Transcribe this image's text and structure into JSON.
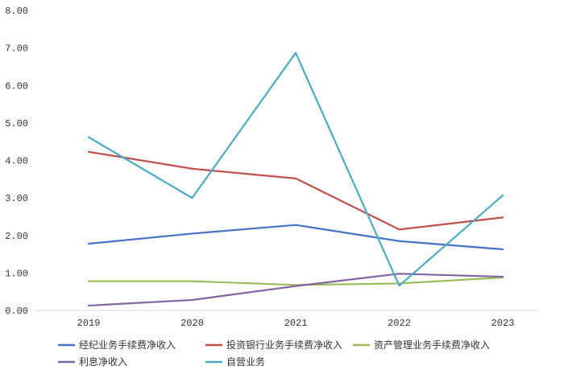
{
  "chart_data": {
    "type": "line",
    "title": "",
    "xlabel": "",
    "ylabel": "",
    "categories": [
      "2019",
      "2020",
      "2021",
      "2022",
      "2023"
    ],
    "ylim": [
      0,
      8
    ],
    "yticks": [
      "0.00",
      "1.00",
      "2.00",
      "3.00",
      "4.00",
      "5.00",
      "6.00",
      "7.00",
      "8.00"
    ],
    "grid": false,
    "legend_position": "bottom",
    "series": [
      {
        "name": "经纪业务手续费净收入",
        "color": "#4472c4",
        "values": [
          1.78,
          2.05,
          2.28,
          1.85,
          1.63
        ]
      },
      {
        "name": "投资银行业务手续费净收入",
        "color": "#c0504d",
        "values": [
          4.23,
          3.78,
          3.52,
          2.16,
          2.48
        ]
      },
      {
        "name": "资产管理业务手续费净收入",
        "color": "#9bbb59",
        "values": [
          0.78,
          0.78,
          0.68,
          0.72,
          0.88
        ]
      },
      {
        "name": "利息净收入",
        "color": "#8064a2",
        "values": [
          0.13,
          0.28,
          0.65,
          0.98,
          0.9
        ]
      },
      {
        "name": "自营业务",
        "color": "#4bacc6",
        "values": [
          4.62,
          3.0,
          6.87,
          0.66,
          3.07
        ]
      }
    ]
  }
}
